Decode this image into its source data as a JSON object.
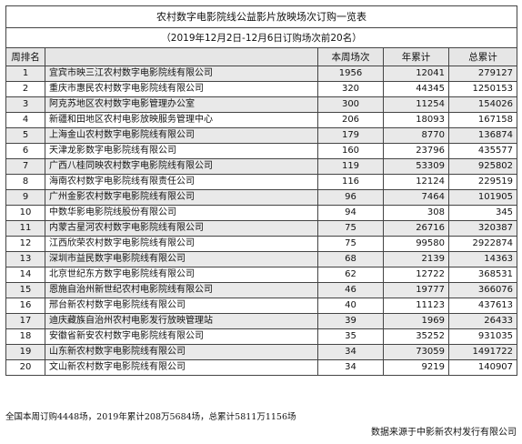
{
  "table": {
    "title": "农村数字电影院线公益影片放映场次订购一览表",
    "subtitle": "（2019年12月2日-12月6日订购场次前20名）",
    "headers": [
      "周排名",
      "",
      "本周场次",
      "年累计",
      "总累计"
    ],
    "rows": [
      {
        "rank": "1",
        "name": "宜宾市映三江农村数字电影院线有限公司",
        "week": "1956",
        "year": "12041",
        "total": "279127"
      },
      {
        "rank": "2",
        "name": "重庆市惠民农村数字电影院线有限公司",
        "week": "320",
        "year": "44345",
        "total": "1250153"
      },
      {
        "rank": "3",
        "name": "阿克苏地区农村数字电影管理办公室",
        "week": "300",
        "year": "11254",
        "total": "154026"
      },
      {
        "rank": "4",
        "name": "新疆和田地区农村电影放映服务管理中心",
        "week": "206",
        "year": "18093",
        "total": "167158"
      },
      {
        "rank": "5",
        "name": "上海金山农村数字电影院线有限公司",
        "week": "179",
        "year": "8770",
        "total": "136874"
      },
      {
        "rank": "6",
        "name": "天津龙影数字电影院线有限公司",
        "week": "160",
        "year": "23796",
        "total": "435577"
      },
      {
        "rank": "7",
        "name": "广西八桂同映农村数字电影院线有限公司",
        "week": "119",
        "year": "53309",
        "total": "925802"
      },
      {
        "rank": "8",
        "name": "海南农村数字电影院线有限责任公司",
        "week": "116",
        "year": "12124",
        "total": "229519"
      },
      {
        "rank": "9",
        "name": "广州金影农村数字电影院线有限公司",
        "week": "96",
        "year": "7464",
        "total": "101905"
      },
      {
        "rank": "10",
        "name": "中数华影电影院线股份有限公司",
        "week": "94",
        "year": "308",
        "total": "345"
      },
      {
        "rank": "11",
        "name": "内蒙古星河农村数字电影院线有限公司",
        "week": "75",
        "year": "26716",
        "total": "320387"
      },
      {
        "rank": "12",
        "name": "江西欣荣农村数字电影院线有限公司",
        "week": "75",
        "year": "99580",
        "total": "2922874"
      },
      {
        "rank": "13",
        "name": "深圳市益民数字电影院线有限公司",
        "week": "68",
        "year": "2139",
        "total": "14363"
      },
      {
        "rank": "14",
        "name": "北京世纪东方数字电影院线有限公司",
        "week": "62",
        "year": "12722",
        "total": "368531"
      },
      {
        "rank": "15",
        "name": "恩施自治州新世纪农村电影院线有限公司",
        "week": "46",
        "year": "19777",
        "total": "366076"
      },
      {
        "rank": "16",
        "name": "邢台新农村数字电影院线有限公司",
        "week": "40",
        "year": "11123",
        "total": "437613"
      },
      {
        "rank": "17",
        "name": "迪庆藏族自治州农村电影发行放映管理站",
        "week": "39",
        "year": "1969",
        "total": "26433"
      },
      {
        "rank": "18",
        "name": "安徽省新安农村数字电影院线有限公司",
        "week": "35",
        "year": "35252",
        "total": "931035"
      },
      {
        "rank": "19",
        "name": "山东新农村数字电影院线有限公司",
        "week": "34",
        "year": "73059",
        "total": "1491722"
      },
      {
        "rank": "20",
        "name": "文山新农村数字电影院线有限公司",
        "week": "34",
        "year": "9219",
        "total": "140907"
      }
    ]
  },
  "footnote": "全国本周订购4448场，2019年累计208万5684场，总累计5811万1156场",
  "source": "数据来源于中影新农村发行有限公司"
}
